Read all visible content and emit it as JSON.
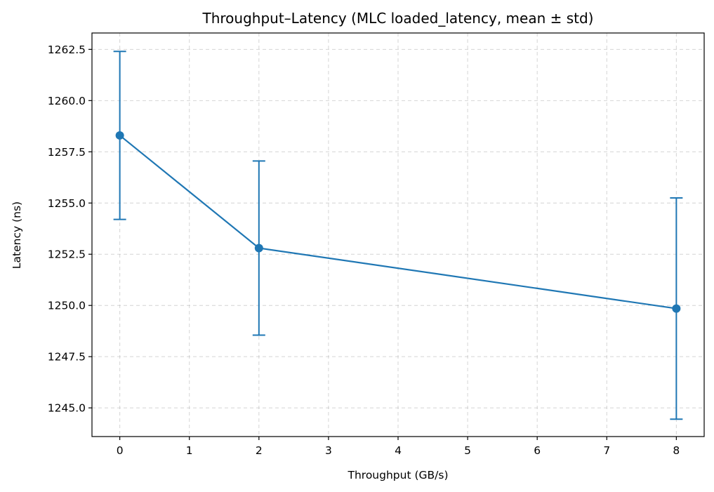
{
  "chart_data": {
    "type": "line",
    "title": "Throughput–Latency (MLC loaded_latency, mean ± std)",
    "xlabel": "Throughput (GB/s)",
    "ylabel": "Latency (ns)",
    "xlim": [
      -0.4,
      8.4
    ],
    "ylim": [
      1243.6,
      1263.3
    ],
    "xticks": [
      0,
      1,
      2,
      3,
      4,
      5,
      6,
      7,
      8
    ],
    "yticks": [
      1245.0,
      1247.5,
      1250.0,
      1252.5,
      1255.0,
      1257.5,
      1260.0,
      1262.5
    ],
    "grid": true,
    "series": [
      {
        "color": "#1f77b4",
        "x": [
          0,
          2,
          8
        ],
        "y": [
          1258.3,
          1252.8,
          1249.85
        ],
        "yerr": [
          4.1,
          4.25,
          5.4
        ]
      }
    ]
  }
}
